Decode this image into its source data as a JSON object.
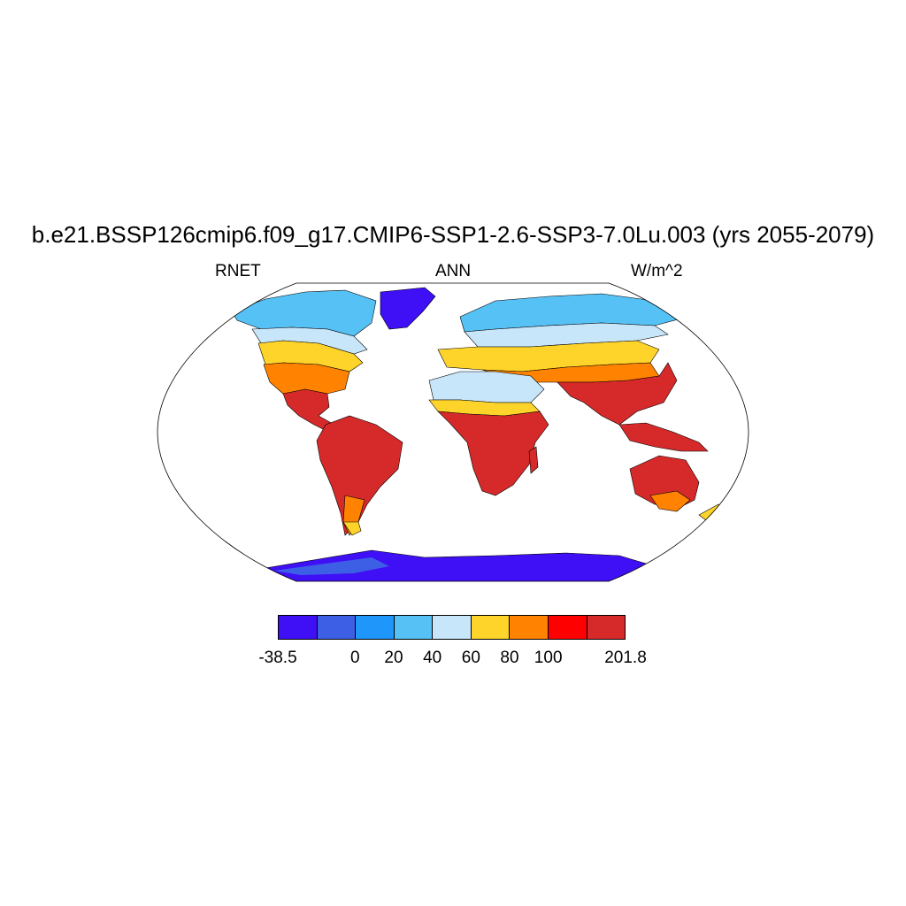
{
  "title": "b.e21.BSSP126cmip6.f09_g17.CMIP6-SSP1-2.6-SSP3-7.0Lu.003 (yrs 2055-2079)",
  "left_label": "RNET",
  "center_label": "ANN",
  "right_label": "W/m^2",
  "colorbar": {
    "colors": [
      "#3f0ff5",
      "#3d5fe6",
      "#1e96fa",
      "#56c1f5",
      "#c8e6fa",
      "#ffd42a",
      "#ff8200",
      "#ff0000",
      "#d62a2a"
    ],
    "tick_labels": [
      "-38.5",
      "0",
      "20",
      "40",
      "60",
      "80",
      "100",
      "201.8"
    ],
    "tick_values": [
      -38.5,
      0,
      20,
      40,
      60,
      80,
      100,
      201.8
    ]
  },
  "map": {
    "projection": "robinson",
    "field": "RNET",
    "ocean_color": "#ffffff"
  }
}
